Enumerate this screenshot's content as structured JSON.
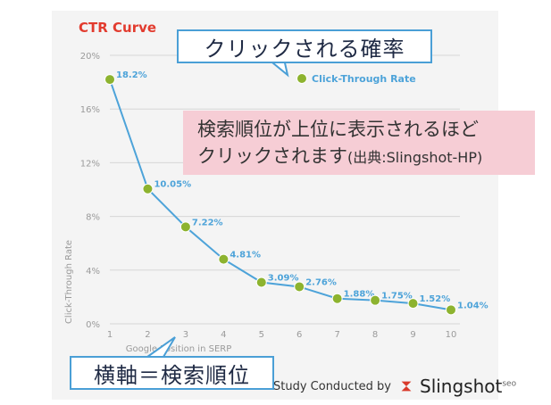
{
  "colors": {
    "line": "#4da3d9",
    "point": "#8db32f",
    "title": "#e23b2e",
    "grid": "#d6d6d6",
    "axis_text": "#9a9a9a"
  },
  "chart_data": {
    "type": "line",
    "title": "CTR Curve",
    "xlabel": "Google Position in SERP",
    "ylabel": "Click-Through Rate",
    "categories": [
      "1",
      "2",
      "3",
      "4",
      "5",
      "6",
      "7",
      "8",
      "9",
      "10"
    ],
    "x": [
      1,
      2,
      3,
      4,
      5,
      6,
      7,
      8,
      9,
      10
    ],
    "series": [
      {
        "name": "Click-Through Rate",
        "values": [
          18.2,
          10.05,
          7.22,
          4.81,
          3.09,
          2.76,
          1.88,
          1.75,
          1.52,
          1.04
        ],
        "labels": [
          "18.2%",
          "10.05%",
          "7.22%",
          "4.81%",
          "3.09%",
          "2.76%",
          "1.88%",
          "1.75%",
          "1.52%",
          "1.04%"
        ]
      }
    ],
    "ylim": [
      0,
      20
    ],
    "yticks": [
      "0%",
      "4%",
      "8%",
      "12%",
      "16%",
      "20%"
    ],
    "legend": "top-right",
    "grid": true
  },
  "annotations": {
    "callout_top": "クリックされる確率",
    "note_line1": "検索順位が上位に表示されるほど",
    "note_line2": "クリックされます",
    "note_source": "(出典:Slingshot-HP)",
    "callout_bottom": "横軸＝検索順位"
  },
  "footer": {
    "text": "Study Conducted by",
    "brand": "Slingshot",
    "brand_sup": "seo"
  }
}
